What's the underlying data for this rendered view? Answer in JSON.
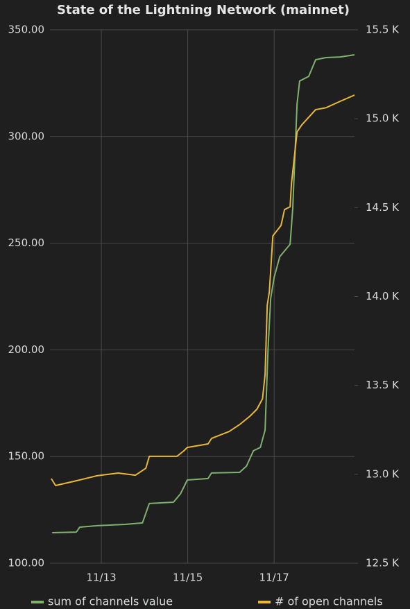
{
  "chart_data": {
    "type": "line",
    "title": "State of the Lightning Network (mainnet)",
    "xlim": [
      11.81,
      18.86
    ],
    "xticks": [
      {
        "value": 13,
        "label": "11/13"
      },
      {
        "value": 15,
        "label": "11/15"
      },
      {
        "value": 17,
        "label": "11/17"
      }
    ],
    "ylim": [
      100,
      350
    ],
    "yticks": [
      {
        "value": 100,
        "label": "100.00"
      },
      {
        "value": 150,
        "label": "150.00"
      },
      {
        "value": 200,
        "label": "200.00"
      },
      {
        "value": 250,
        "label": "250.00"
      },
      {
        "value": 300,
        "label": "300.00"
      },
      {
        "value": 350,
        "label": "350.00"
      }
    ],
    "y2lim": [
      12500,
      15500
    ],
    "y2ticks": [
      {
        "value": 12500,
        "label": "12.5 K"
      },
      {
        "value": 13000,
        "label": "13.0 K"
      },
      {
        "value": 13500,
        "label": "13.5 K"
      },
      {
        "value": 14000,
        "label": "14.0 K"
      },
      {
        "value": 14500,
        "label": "14.5 K"
      },
      {
        "value": 15000,
        "label": "15.0 K"
      },
      {
        "value": 15500,
        "label": "15.5 K"
      }
    ],
    "grid": true,
    "legend": "bottom",
    "series": [
      {
        "name": "sum of channels value",
        "color": "#7eb26d",
        "axis": "y",
        "x": [
          11.86,
          12.42,
          12.5,
          12.9,
          13.55,
          13.95,
          14.03,
          14.11,
          14.67,
          14.83,
          14.99,
          15.47,
          15.55,
          16.2,
          16.36,
          16.52,
          16.68,
          16.79,
          16.86,
          16.92,
          17.0,
          17.13,
          17.37,
          17.43,
          17.53,
          17.59,
          17.8,
          17.96,
          18.2,
          18.53,
          18.86
        ],
        "values": [
          114.3,
          114.6,
          116.9,
          117.6,
          118.2,
          118.9,
          123.4,
          128,
          128.6,
          132.5,
          139,
          139.7,
          142.3,
          142.6,
          145.5,
          152.7,
          154.3,
          162.4,
          201.4,
          224.2,
          234,
          243.7,
          249.5,
          266.4,
          315.2,
          326,
          328.2,
          336,
          337,
          337.3,
          338.3
        ]
      },
      {
        "name": "# of open channels",
        "color": "#eab839",
        "axis": "y2",
        "x": [
          11.84,
          11.94,
          12.42,
          12.9,
          13.39,
          13.79,
          14.03,
          14.11,
          14.75,
          14.91,
          14.99,
          15.47,
          15.55,
          15.96,
          16.2,
          16.44,
          16.6,
          16.73,
          16.79,
          16.84,
          16.89,
          16.97,
          17.16,
          17.24,
          17.37,
          17.4,
          17.53,
          17.64,
          17.96,
          18.2,
          18.53,
          18.86
        ],
        "values": [
          12976,
          12937,
          12964,
          12992,
          13007,
          12995,
          13034,
          13101,
          13101,
          13132,
          13151,
          13171,
          13202,
          13241,
          13280,
          13327,
          13366,
          13425,
          13561,
          13951,
          14029,
          14341,
          14400,
          14489,
          14505,
          14634,
          14926,
          14965,
          15051,
          15062,
          15098,
          15133
        ]
      }
    ]
  }
}
